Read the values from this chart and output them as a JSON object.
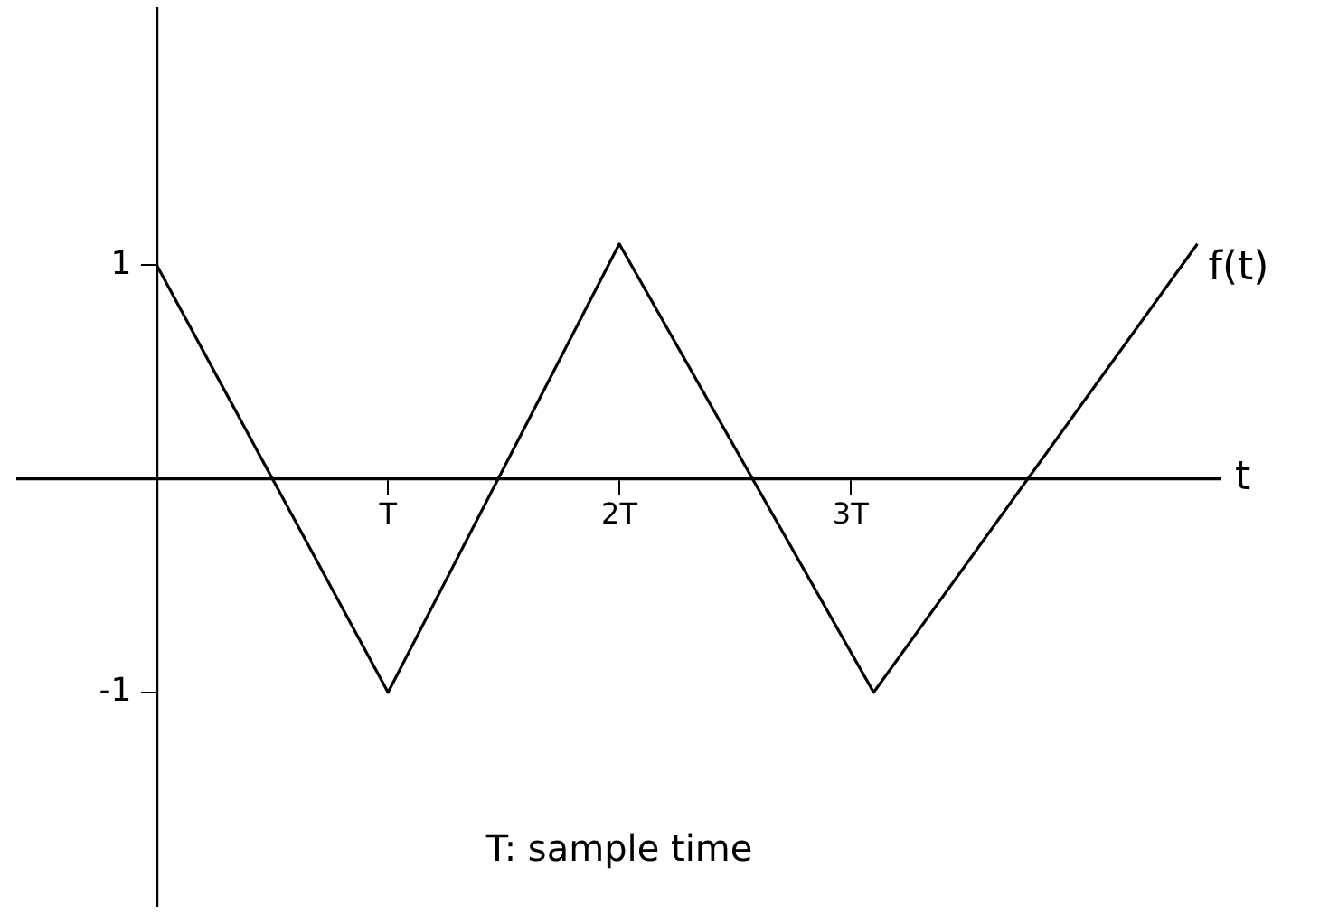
{
  "chart_data": {
    "type": "line",
    "xlabel": "t",
    "x": [
      0,
      1,
      2,
      3.1,
      4.5
    ],
    "series": [
      {
        "name": "f(t)",
        "color": "#000000",
        "values": [
          1,
          -1,
          1.1,
          -1,
          1.1
        ]
      }
    ],
    "xlim": [
      -0.6,
      4.6
    ],
    "ylim": [
      -2,
      2.2
    ],
    "xticks": [
      {
        "value": 1,
        "label": "T"
      },
      {
        "value": 2,
        "label": "2T"
      },
      {
        "value": 3,
        "label": "3T"
      }
    ],
    "yticks": [
      -1,
      1
    ],
    "grid": false,
    "legend": false,
    "marker": "none",
    "line_style": "solid",
    "annotations": [
      "T: sample time"
    ]
  }
}
